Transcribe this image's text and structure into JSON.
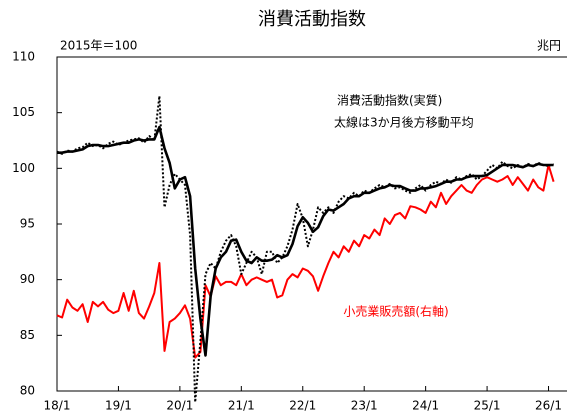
{
  "chart_data": {
    "type": "line",
    "title": "消費活動指数",
    "annotations": [
      "2015年＝100",
      "兆円",
      "消費活動指数(実質)",
      "太線は3か月後方移動平均",
      "小売業販売額(右軸)"
    ],
    "categories": [
      "18/1",
      null,
      null,
      null,
      null,
      null,
      null,
      null,
      null,
      null,
      null,
      null,
      "19/1",
      null,
      null,
      null,
      null,
      null,
      null,
      null,
      null,
      null,
      null,
      null,
      "20/1",
      null,
      null,
      null,
      null,
      null,
      null,
      null,
      null,
      null,
      null,
      null,
      "21/1",
      null,
      null,
      null,
      null,
      null,
      null,
      null,
      null,
      null,
      null,
      null,
      "22/1",
      null,
      null,
      null,
      null,
      null,
      null,
      null,
      null,
      null,
      null,
      null,
      "23/1",
      null,
      null,
      null,
      null,
      null,
      null,
      null,
      null,
      null,
      null,
      null,
      "24/1",
      null,
      null,
      null,
      null,
      null,
      null,
      null,
      null,
      null,
      null,
      null,
      "25/1",
      null,
      null,
      null,
      null,
      null,
      null,
      null,
      null,
      null,
      null,
      null,
      "26/1",
      null
    ],
    "series": [
      {
        "name": "消費活動指数(実質)",
        "color": "#000000",
        "style": "dotted",
        "values": [
          101.5,
          101.3,
          101.6,
          101.5,
          101.8,
          101.9,
          102.3,
          102.0,
          102.1,
          101.8,
          102.2,
          102.4,
          102.1,
          102.3,
          102.5,
          102.6,
          102.7,
          102.3,
          102.9,
          102.5,
          106.5,
          96.5,
          98.5,
          99.5,
          99.0,
          98.5,
          94.0,
          79.0,
          84.5,
          90.5,
          91.5,
          91.0,
          92.5,
          93.5,
          94.0,
          93.0,
          90.5,
          91.5,
          92.5,
          92.0,
          90.5,
          92.5,
          92.5,
          91.5,
          92.0,
          93.0,
          94.5,
          96.8,
          95.5,
          93.0,
          94.5,
          96.5,
          96.0,
          96.5,
          96.0,
          97.0,
          97.5,
          97.3,
          97.8,
          97.5,
          98.0,
          97.8,
          98.2,
          98.5,
          98.3,
          98.6,
          98.2,
          98.3,
          98.0,
          97.8,
          98.2,
          98.5,
          98.0,
          98.5,
          98.8,
          98.6,
          99.0,
          98.7,
          99.2,
          99.0,
          99.3,
          99.5,
          99.0,
          99.3,
          99.8,
          100.3,
          100.0,
          100.6,
          100.2,
          100.0,
          100.3,
          100.1,
          100.4,
          100.2,
          100.5,
          100.3,
          100.2,
          100.4
        ]
      },
      {
        "name": "太線は3か月後方移動平均",
        "color": "#000000",
        "style": "thick",
        "values": [
          101.4,
          101.4,
          101.5,
          101.5,
          101.6,
          101.7,
          102.0,
          102.1,
          102.1,
          102.0,
          102.0,
          102.1,
          102.2,
          102.3,
          102.3,
          102.5,
          102.6,
          102.5,
          102.6,
          102.6,
          103.7,
          101.8,
          100.5,
          98.2,
          99.0,
          99.2,
          97.5,
          91.0,
          86.5,
          83.2,
          88.5,
          91.0,
          92.0,
          92.5,
          93.5,
          93.6,
          92.5,
          91.7,
          91.5,
          92.0,
          91.7,
          91.7,
          91.8,
          92.2,
          92.0,
          92.2,
          93.2,
          94.8,
          95.6,
          95.1,
          94.3,
          94.7,
          95.7,
          96.3,
          96.2,
          96.5,
          96.8,
          97.3,
          97.5,
          97.5,
          97.8,
          97.8,
          98.0,
          98.2,
          98.3,
          98.5,
          98.4,
          98.4,
          98.2,
          98.0,
          98.0,
          98.2,
          98.2,
          98.3,
          98.4,
          98.6,
          98.8,
          98.8,
          99.0,
          99.0,
          99.2,
          99.3,
          99.3,
          99.3,
          99.4,
          99.7,
          100.0,
          100.3,
          100.3,
          100.3,
          100.2,
          100.1,
          100.3,
          100.2,
          100.4,
          100.3,
          100.3,
          100.3
        ]
      },
      {
        "name": "小売業販売額(右軸)",
        "color": "#ff0000",
        "style": "solid",
        "values": [
          86.8,
          86.6,
          88.2,
          87.5,
          87.2,
          87.8,
          86.2,
          88.0,
          87.6,
          88.0,
          87.3,
          87.0,
          87.2,
          88.8,
          87.2,
          89.0,
          87.0,
          86.5,
          87.6,
          88.8,
          91.5,
          83.6,
          86.2,
          86.5,
          87.0,
          87.7,
          86.5,
          83.0,
          83.5,
          89.5,
          88.5,
          90.3,
          89.5,
          89.8,
          89.8,
          89.5,
          90.5,
          89.5,
          90.0,
          90.2,
          90.0,
          89.8,
          90.0,
          88.4,
          88.6,
          90.0,
          90.5,
          90.2,
          91.0,
          90.8,
          90.3,
          89.0,
          90.3,
          91.5,
          92.5,
          92.0,
          93.0,
          92.5,
          93.5,
          93.0,
          94.0,
          93.7,
          94.5,
          94.0,
          95.5,
          95.0,
          95.8,
          96.0,
          95.5,
          96.6,
          96.5,
          96.3,
          96.0,
          97.0,
          96.5,
          97.8,
          96.8,
          97.5,
          98.0,
          98.5,
          98.0,
          97.8,
          98.5,
          99.0,
          99.2,
          99.0,
          98.8,
          99.0,
          99.3,
          98.5,
          99.2,
          98.6,
          98.0,
          99.0,
          98.3,
          98.0,
          100.3,
          98.8
        ]
      }
    ],
    "ylim": [
      80,
      110
    ],
    "yticks": [
      80,
      85,
      90,
      95,
      100,
      105,
      110
    ],
    "grid": false
  }
}
